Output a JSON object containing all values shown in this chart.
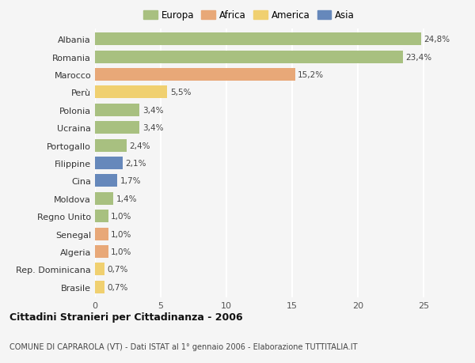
{
  "countries": [
    "Albania",
    "Romania",
    "Marocco",
    "Perù",
    "Polonia",
    "Ucraina",
    "Portogallo",
    "Filippine",
    "Cina",
    "Moldova",
    "Regno Unito",
    "Senegal",
    "Algeria",
    "Rep. Dominicana",
    "Brasile"
  ],
  "values": [
    24.8,
    23.4,
    15.2,
    5.5,
    3.4,
    3.4,
    2.4,
    2.1,
    1.7,
    1.4,
    1.0,
    1.0,
    1.0,
    0.7,
    0.7
  ],
  "labels": [
    "24,8%",
    "23,4%",
    "15,2%",
    "5,5%",
    "3,4%",
    "3,4%",
    "2,4%",
    "2,1%",
    "1,7%",
    "1,4%",
    "1,0%",
    "1,0%",
    "1,0%",
    "0,7%",
    "0,7%"
  ],
  "colors": [
    "#a8c080",
    "#a8c080",
    "#e8a878",
    "#f0d070",
    "#a8c080",
    "#a8c080",
    "#a8c080",
    "#6688bb",
    "#6688bb",
    "#a8c080",
    "#a8c080",
    "#e8a878",
    "#e8a878",
    "#f0d070",
    "#f0d070"
  ],
  "legend_colors": {
    "Europa": "#a8c080",
    "Africa": "#e8a878",
    "America": "#f0d070",
    "Asia": "#6688bb"
  },
  "title": "Cittadini Stranieri per Cittadinanza - 2006",
  "subtitle": "COMUNE DI CAPRAROLA (VT) - Dati ISTAT al 1° gennaio 2006 - Elaborazione TUTTITALIA.IT",
  "xlim": [
    0,
    26
  ],
  "background_color": "#f5f5f5",
  "grid_color": "#ffffff"
}
